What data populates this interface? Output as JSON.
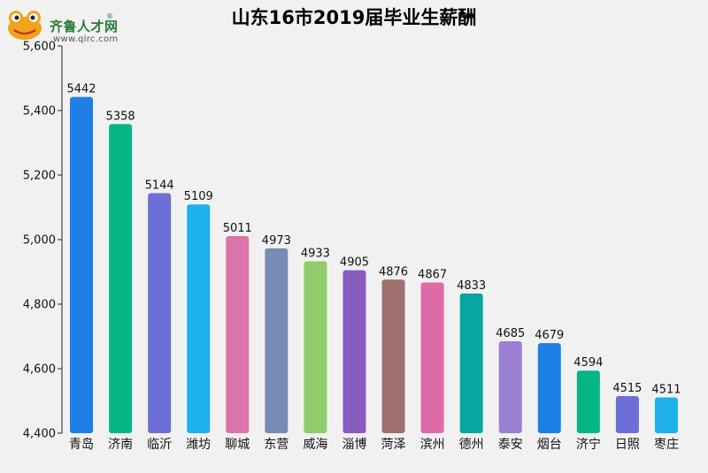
{
  "logo": {
    "name": "齐鲁人才网",
    "reg_mark": "®",
    "url": "www.qlrc.com"
  },
  "chart_data": {
    "type": "bar",
    "title": "山东16市2019届毕业生薪酬",
    "categories": [
      "青岛",
      "济南",
      "临沂",
      "潍坊",
      "聊城",
      "东营",
      "威海",
      "淄博",
      "菏泽",
      "滨州",
      "德州",
      "泰安",
      "烟台",
      "济宁",
      "日照",
      "枣庄"
    ],
    "values": [
      5442,
      5358,
      5144,
      5109,
      5011,
      4973,
      4933,
      4905,
      4876,
      4867,
      4833,
      4685,
      4679,
      4594,
      4515,
      4511
    ],
    "colors": [
      "#1e7fe6",
      "#04b585",
      "#6c6fd6",
      "#1eb0ea",
      "#d975a8",
      "#7a8bb3",
      "#8fcc6c",
      "#8a5bbf",
      "#9e706e",
      "#de6aa8",
      "#08a6a0",
      "#9a7fd4",
      "#1e7fe6",
      "#04b585",
      "#6c6fd6",
      "#1eb0ea"
    ],
    "ylim": [
      4400,
      5600
    ],
    "yticks": [
      4400,
      4600,
      4800,
      5000,
      5200,
      5400,
      5600
    ],
    "ytick_labels": [
      "4,400",
      "4,600",
      "4,800",
      "5,000",
      "5,200",
      "5,400",
      "5,600"
    ],
    "xlabel": "",
    "ylabel": "",
    "grid": false,
    "data_labels": true
  }
}
